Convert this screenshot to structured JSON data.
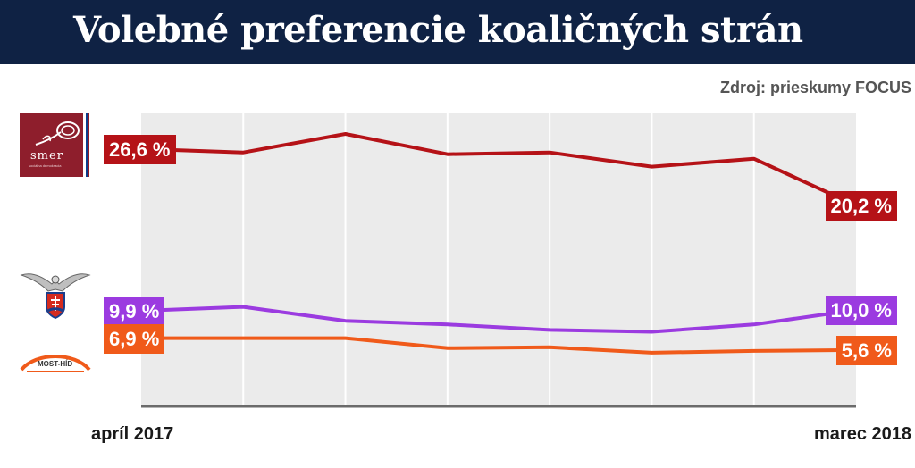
{
  "title": "Volebné preferencie koaličných strán",
  "source": "Zdroj: prieskumy FOCUS",
  "colors": {
    "title_bg": "#0f2244",
    "plot_bg": "#ebebeb",
    "smer": "#b51217",
    "sns": "#9b3be0",
    "most_hid": "#f05a1a"
  },
  "logos": {
    "smer": {
      "text": "smer",
      "subtext": "sociálna demokracia"
    },
    "sns": {
      "icon": "eagle-emblem-icon"
    },
    "most_hid": {
      "text": "MOST-HÍD"
    }
  },
  "chart_data": {
    "type": "line",
    "x_start_label": "apríl 2017",
    "x_end_label": "marec 2018",
    "points_count": 8,
    "ylim": [
      0,
      30
    ],
    "grid": "vertical",
    "series": [
      {
        "key": "smer",
        "values": [
          26.6,
          26.2,
          28.3,
          26.0,
          26.2,
          24.6,
          25.5,
          20.2
        ],
        "start_label": "26,6 %",
        "end_label": "20,2 %"
      },
      {
        "key": "sns",
        "values": [
          9.9,
          10.3,
          8.8,
          8.4,
          7.8,
          7.6,
          8.4,
          10.0
        ],
        "start_label": "9,9 %",
        "end_label": "10,0 %"
      },
      {
        "key": "most_hid",
        "values": [
          6.9,
          6.9,
          6.9,
          5.8,
          5.9,
          5.3,
          5.5,
          5.6
        ],
        "start_label": "6,9 %",
        "end_label": "5,6 %"
      }
    ]
  }
}
